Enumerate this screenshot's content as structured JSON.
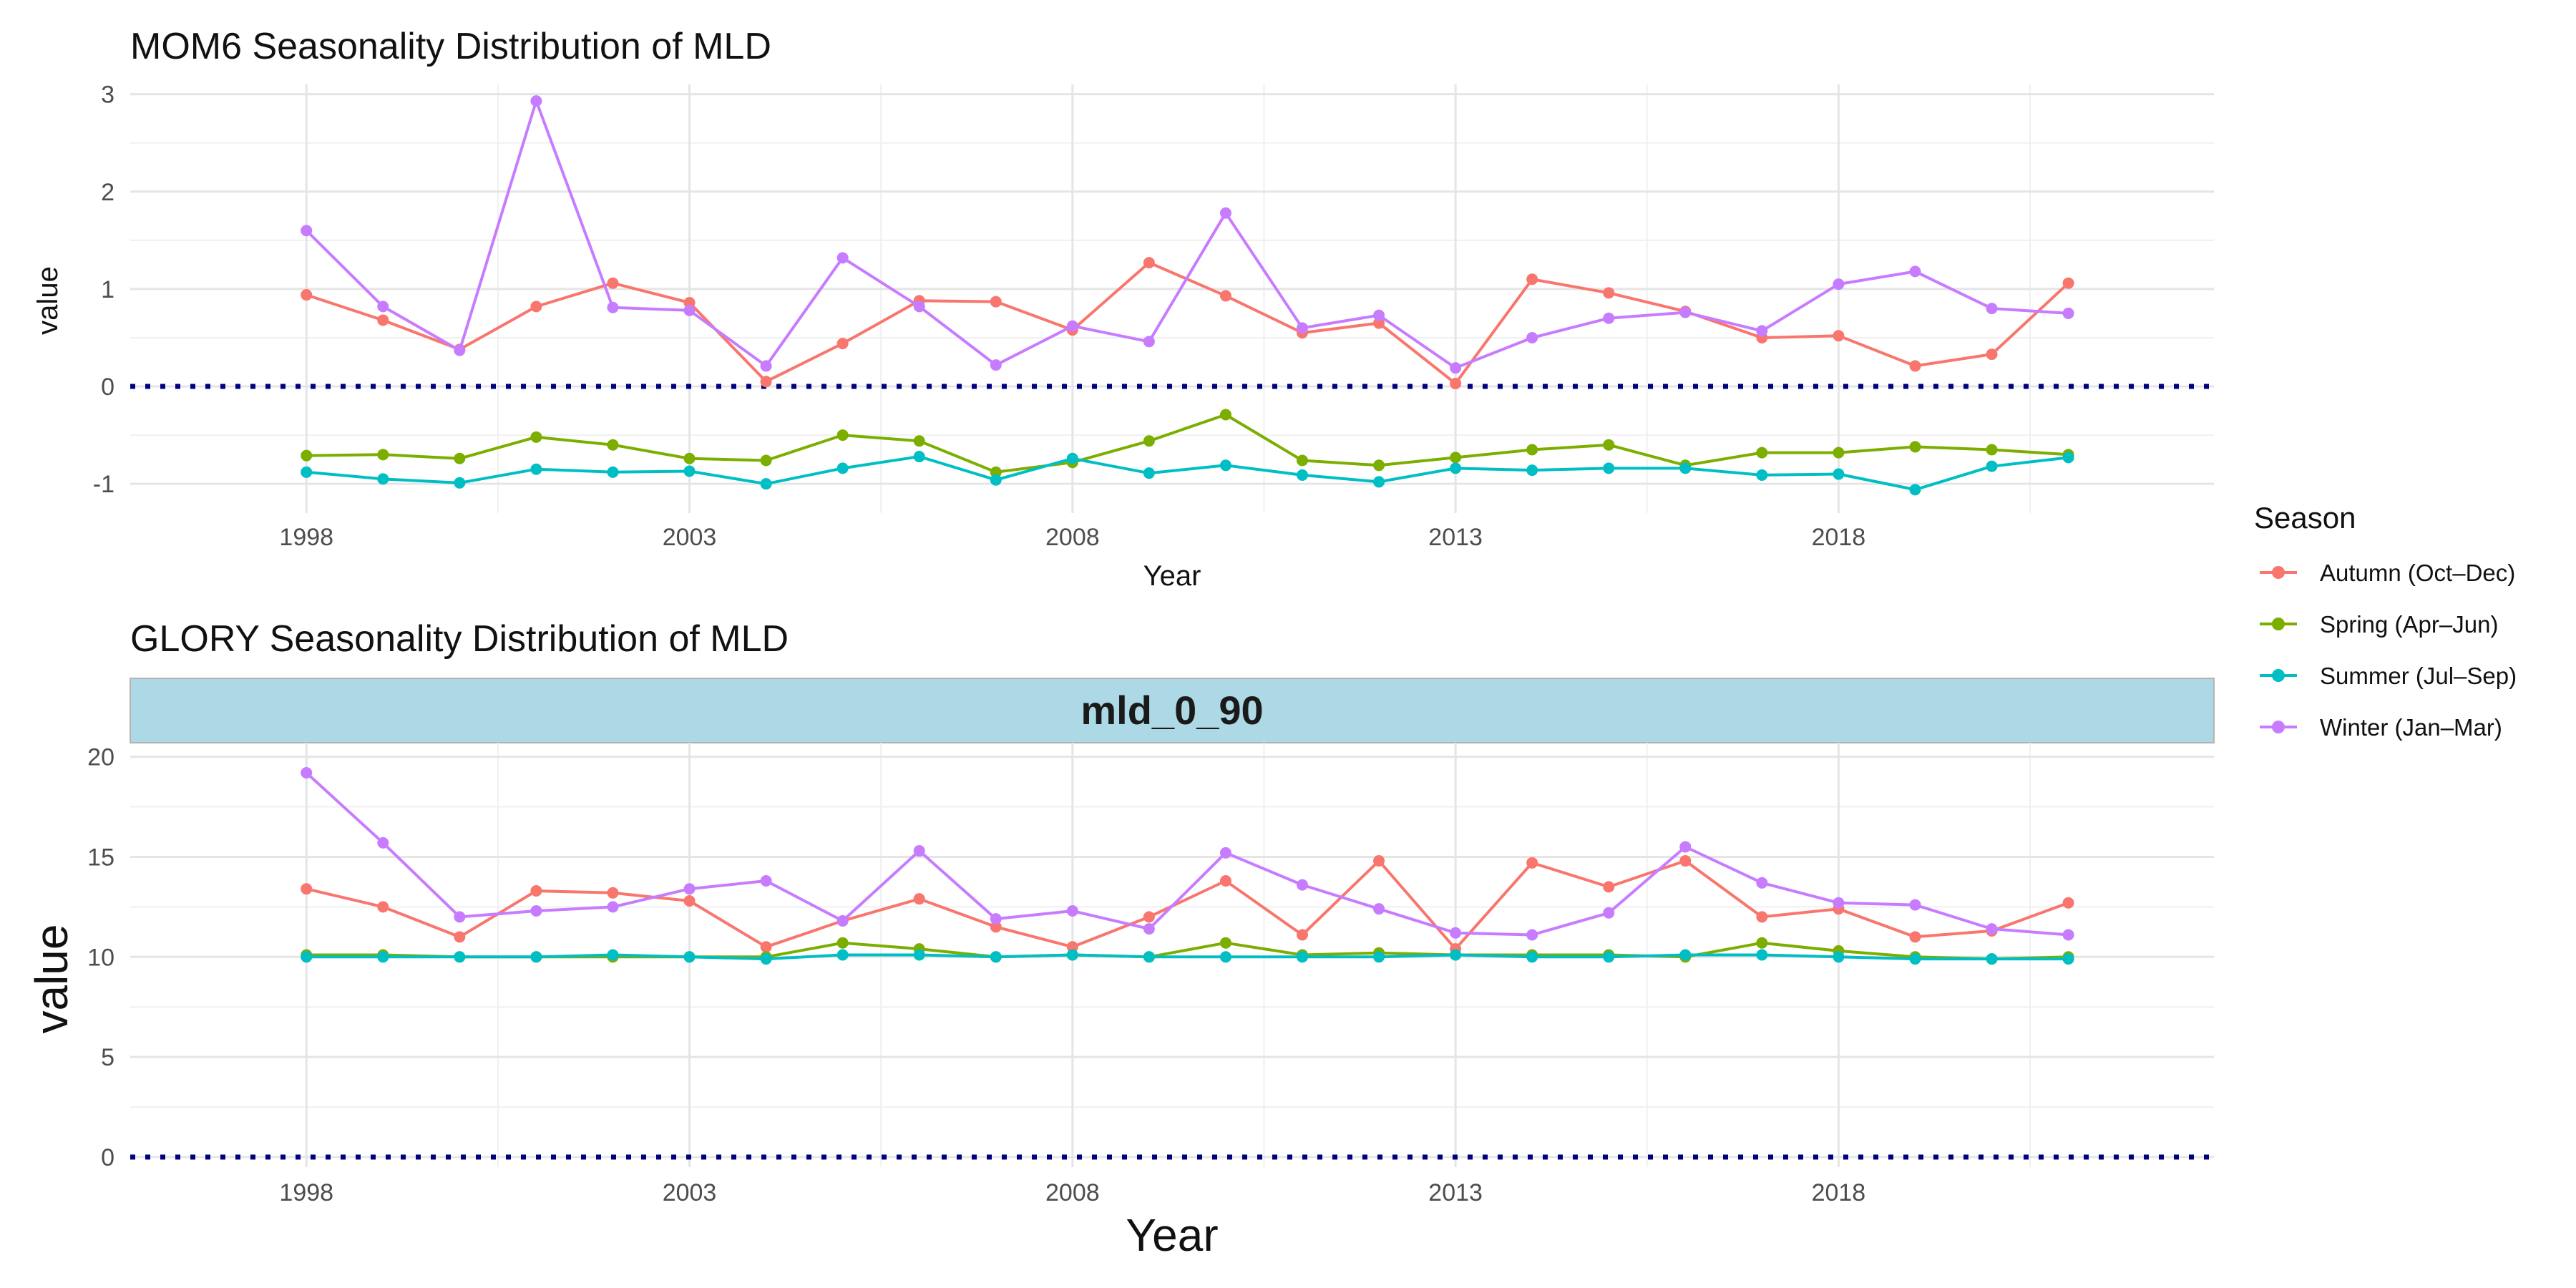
{
  "chart_data": [
    {
      "type": "line",
      "title": "MOM6 Seasonality Distribution of MLD",
      "xlabel": "Year",
      "ylabel": "value",
      "xlim": [
        1995.7,
        2022.9
      ],
      "ylim": [
        -1.3,
        3.1
      ],
      "x_ticks": [
        1998,
        2003,
        2008,
        2013,
        2018
      ],
      "y_ticks": [
        -1,
        0,
        1,
        2,
        3
      ],
      "reference_line": 0,
      "grid": true,
      "x": [
        1998,
        1999,
        2000,
        2001,
        2002,
        2003,
        2004,
        2005,
        2006,
        2007,
        2008,
        2009,
        2010,
        2011,
        2012,
        2013,
        2014,
        2015,
        2016,
        2017,
        2018,
        2019,
        2020,
        2021
      ],
      "series": [
        {
          "name": "Autumn (Oct–Dec)",
          "color": "#F8766D",
          "values": [
            0.94,
            0.68,
            0.38,
            0.82,
            1.06,
            0.86,
            0.05,
            0.44,
            0.88,
            0.87,
            0.58,
            1.27,
            0.93,
            0.55,
            0.65,
            0.03,
            1.1,
            0.96,
            0.77,
            0.5,
            0.52,
            0.21,
            0.33,
            1.06
          ]
        },
        {
          "name": "Spring (Apr–Jun)",
          "color": "#7CAE00",
          "values": [
            -0.71,
            -0.7,
            -0.74,
            -0.52,
            -0.6,
            -0.74,
            -0.76,
            -0.5,
            -0.56,
            -0.88,
            -0.78,
            -0.56,
            -0.29,
            -0.76,
            -0.81,
            -0.73,
            -0.65,
            -0.6,
            -0.81,
            -0.68,
            -0.68,
            -0.62,
            -0.65,
            -0.7
          ]
        },
        {
          "name": "Summer (Jul–Sep)",
          "color": "#00BFC4",
          "values": [
            -0.88,
            -0.95,
            -0.99,
            -0.85,
            -0.88,
            -0.87,
            -1.0,
            -0.84,
            -0.72,
            -0.96,
            -0.74,
            -0.89,
            -0.81,
            -0.91,
            -0.98,
            -0.84,
            -0.86,
            -0.84,
            -0.84,
            -0.91,
            -0.9,
            -1.06,
            -0.82,
            -0.73
          ]
        },
        {
          "name": "Winter (Jan–Mar)",
          "color": "#C77CFF",
          "values": [
            1.6,
            0.82,
            0.37,
            2.93,
            0.81,
            0.78,
            0.21,
            1.32,
            0.82,
            0.22,
            0.62,
            0.46,
            1.78,
            0.6,
            0.73,
            0.19,
            0.5,
            0.7,
            0.76,
            0.57,
            1.05,
            1.18,
            0.8,
            0.75
          ]
        }
      ]
    },
    {
      "type": "line",
      "title": "GLORY Seasonality Distribution of MLD",
      "facet_label": "mld_0_90",
      "xlabel": "Year",
      "ylabel": "value",
      "xlim": [
        1995.7,
        2022.9
      ],
      "ylim": [
        -0.5,
        20.7
      ],
      "x_ticks": [
        1998,
        2003,
        2008,
        2013,
        2018
      ],
      "y_ticks": [
        0,
        5,
        10,
        15,
        20
      ],
      "reference_line": 0,
      "grid": true,
      "x": [
        1998,
        1999,
        2000,
        2001,
        2002,
        2003,
        2004,
        2005,
        2006,
        2007,
        2008,
        2009,
        2010,
        2011,
        2012,
        2013,
        2014,
        2015,
        2016,
        2017,
        2018,
        2019,
        2020,
        2021
      ],
      "series": [
        {
          "name": "Autumn (Oct–Dec)",
          "color": "#F8766D",
          "values": [
            13.4,
            12.5,
            11.0,
            13.3,
            13.2,
            12.8,
            10.5,
            11.8,
            12.9,
            11.5,
            10.5,
            12.0,
            13.8,
            11.1,
            14.8,
            10.4,
            14.7,
            13.5,
            14.8,
            12.0,
            12.4,
            11.0,
            11.3,
            12.7
          ]
        },
        {
          "name": "Spring (Apr–Jun)",
          "color": "#7CAE00",
          "values": [
            10.1,
            10.1,
            10.0,
            10.0,
            10.0,
            10.0,
            10.0,
            10.7,
            10.4,
            10.0,
            10.1,
            10.0,
            10.7,
            10.1,
            10.2,
            10.1,
            10.1,
            10.1,
            10.0,
            10.7,
            10.3,
            10.0,
            9.9,
            10.0
          ]
        },
        {
          "name": "Summer (Jul–Sep)",
          "color": "#00BFC4",
          "values": [
            10.0,
            10.0,
            10.0,
            10.0,
            10.1,
            10.0,
            9.9,
            10.1,
            10.1,
            10.0,
            10.1,
            10.0,
            10.0,
            10.0,
            10.0,
            10.1,
            10.0,
            10.0,
            10.1,
            10.1,
            10.0,
            9.9,
            9.9,
            9.9
          ]
        },
        {
          "name": "Winter (Jan–Mar)",
          "color": "#C77CFF",
          "values": [
            19.2,
            15.7,
            12.0,
            12.3,
            12.5,
            13.4,
            13.8,
            11.8,
            15.3,
            11.9,
            12.3,
            11.4,
            15.2,
            13.6,
            12.4,
            11.2,
            11.1,
            12.2,
            15.5,
            13.7,
            12.7,
            12.6,
            11.4,
            11.1
          ]
        }
      ]
    }
  ],
  "legend": {
    "title": "Season",
    "placement": "right",
    "entries": [
      {
        "label": "Autumn (Oct–Dec)",
        "color": "#F8766D"
      },
      {
        "label": "Spring (Apr–Jun)",
        "color": "#7CAE00"
      },
      {
        "label": "Summer (Jul–Sep)",
        "color": "#00BFC4"
      },
      {
        "label": "Winter (Jan–Mar)",
        "color": "#C77CFF"
      }
    ]
  },
  "reference_line_color": "#000080"
}
